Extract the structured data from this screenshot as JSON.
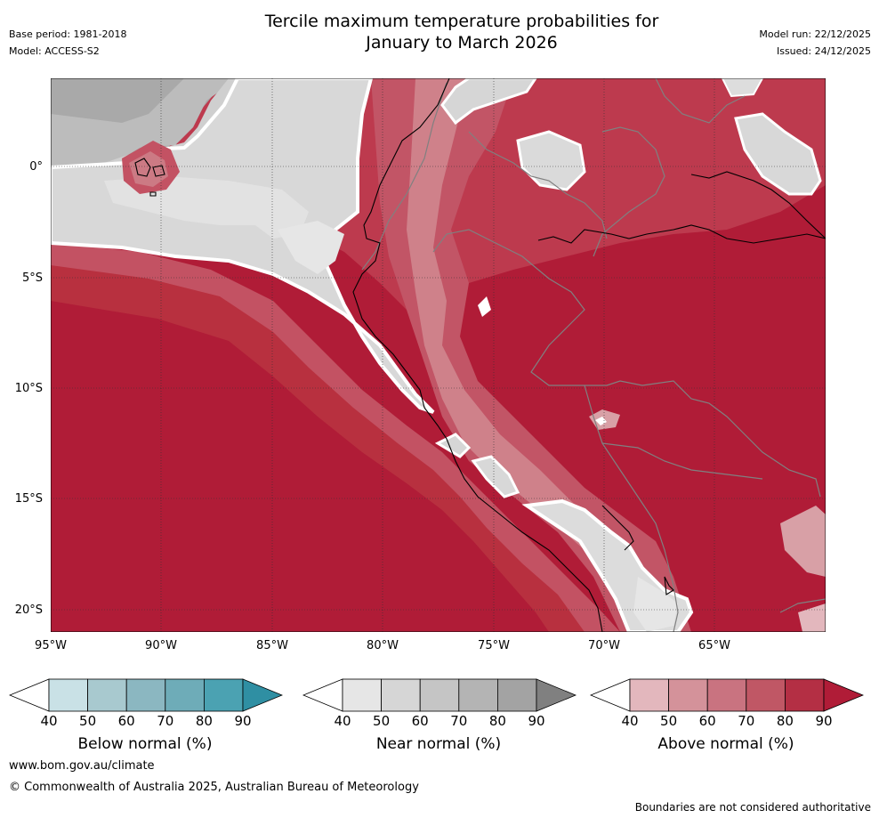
{
  "header": {
    "title_line1": "Tercile maximum temperature probabilities for",
    "title_line2": "January to March 2026",
    "base_period": "Base period: 1981-2018",
    "model": "Model: ACCESS-S2",
    "model_run": "Model run: 22/12/2025",
    "issued": "Issued: 24/12/2025"
  },
  "map": {
    "lat_labels": [
      "0°",
      "5°S",
      "10°S",
      "15°S",
      "20°S"
    ],
    "lon_labels": [
      "95°W",
      "90°W",
      "85°W",
      "80°W",
      "75°W",
      "70°W",
      "65°W"
    ]
  },
  "legends": [
    {
      "title": "Below normal (%)",
      "ticks": [
        "40",
        "50",
        "60",
        "70",
        "80",
        "90"
      ],
      "colors": [
        "#ffffff",
        "#c9e1e6",
        "#a8c9cf",
        "#8bb7c1",
        "#6eacb8",
        "#4ba2b2",
        "#2f8fa3"
      ]
    },
    {
      "title": "Near normal (%)",
      "ticks": [
        "40",
        "50",
        "60",
        "70",
        "80",
        "90"
      ],
      "colors": [
        "#ffffff",
        "#e6e6e6",
        "#d6d6d6",
        "#c5c5c5",
        "#b4b4b4",
        "#a3a3a3",
        "#808080"
      ]
    },
    {
      "title": "Above normal (%)",
      "ticks": [
        "40",
        "50",
        "60",
        "70",
        "80",
        "90"
      ],
      "colors": [
        "#ffffff",
        "#e3b7bd",
        "#d4929a",
        "#c97380",
        "#c05765",
        "#b42f44",
        "#b01c37"
      ]
    }
  ],
  "footer": {
    "website": "www.bom.gov.au/climate",
    "copyright": "© Commonwealth of Australia 2025, Australian Bureau of Meteorology",
    "disclaimer": "Boundaries are not considered authoritative"
  },
  "palette": {
    "above_90": "#b01c37",
    "above_80": "#bb3349",
    "above_70": "#c35263",
    "above_60": "#cc7a84",
    "above_50": "#d8a0a6",
    "near_50": "#dcdcdc",
    "near_60": "#cfcfcf",
    "near_40": "#e6e6e6",
    "near_70": "#a9a9a9"
  }
}
